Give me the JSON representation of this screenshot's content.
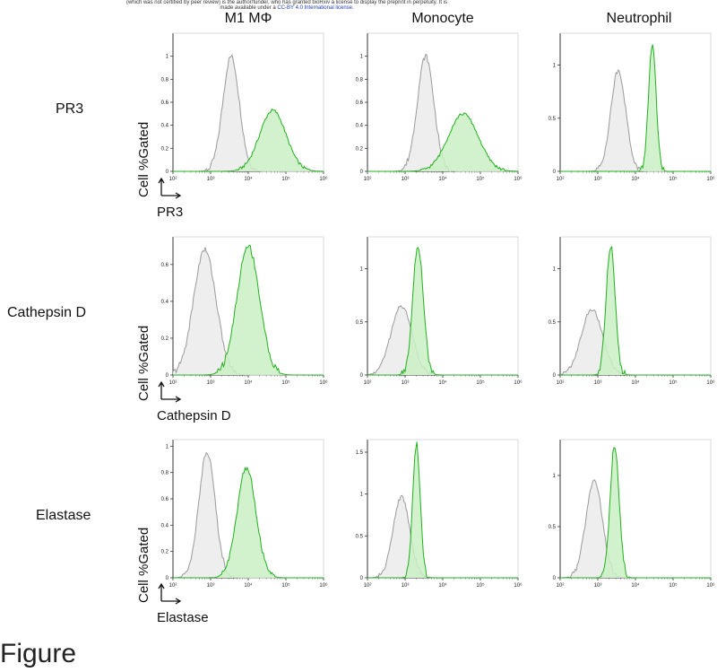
{
  "header": {
    "line1": "(which was not certified by peer review) is the author/funder, who has granted bioRxiv a license to display the preprint in perpetuity. It is",
    "line2_prefix": "made available under a",
    "line2_license": "CC-BY 4.0 International license",
    "line2_suffix": "."
  },
  "columns": [
    "M1 MΦ",
    "Monocyte",
    "Neutrophil"
  ],
  "rows": [
    "PR3",
    "Cathepsin D",
    "Elastase"
  ],
  "y_axis_label": "Cell %Gated",
  "x_axis_labels": [
    "PR3",
    "Cathepsin D",
    "Elastase"
  ],
  "caption": "Figure",
  "colors": {
    "isotype": "#9a9a9a",
    "isotype_fill": "#ececec",
    "stain": "#22b01e",
    "stain_fill": "#c9f0c3"
  },
  "chart_data": [
    {
      "type": "area",
      "panel": "PR3 / M1 MΦ",
      "xscale": "log",
      "xlim": [
        100,
        1000000
      ],
      "ylim": [
        0,
        1.2
      ],
      "yticks": [
        0,
        0.2,
        0.4,
        0.6,
        0.8,
        1
      ],
      "xticks": [
        "10²",
        "10³",
        "10⁴",
        "10⁵",
        "10⁶"
      ],
      "series": [
        {
          "role": "isotype",
          "peak_x": 3500,
          "peak_y": 1.0,
          "width_decades": 0.22
        },
        {
          "role": "stain",
          "peak_x": 45000,
          "peak_y": 0.53,
          "width_decades": 0.35
        }
      ]
    },
    {
      "type": "area",
      "panel": "PR3 / Monocyte",
      "xscale": "log",
      "xlim": [
        100,
        1000000
      ],
      "ylim": [
        0,
        1.2
      ],
      "yticks": [
        0,
        0.2,
        0.4,
        0.6,
        0.8,
        1
      ],
      "xticks": [
        "10²",
        "10³",
        "10⁴",
        "10⁵",
        "10⁶"
      ],
      "series": [
        {
          "role": "isotype",
          "peak_x": 3500,
          "peak_y": 1.0,
          "width_decades": 0.22
        },
        {
          "role": "stain",
          "peak_x": 35000,
          "peak_y": 0.5,
          "width_decades": 0.4
        }
      ]
    },
    {
      "type": "area",
      "panel": "PR3 / Neutrophil",
      "xscale": "log",
      "xlim": [
        100,
        1000000
      ],
      "ylim": [
        0,
        1.3
      ],
      "yticks": [
        0,
        0.5,
        1
      ],
      "xticks": [
        "10²",
        "10³",
        "10⁴",
        "10⁵",
        "10⁶"
      ],
      "series": [
        {
          "role": "isotype",
          "peak_x": 3500,
          "peak_y": 0.95,
          "width_decades": 0.2
        },
        {
          "role": "stain",
          "peak_x": 28000,
          "peak_y": 1.2,
          "width_decades": 0.1
        }
      ]
    },
    {
      "type": "area",
      "panel": "Cathepsin D / M1 MΦ",
      "xscale": "log",
      "xlim": [
        100,
        1000000
      ],
      "ylim": [
        0,
        0.75
      ],
      "yticks": [
        0,
        0.2,
        0.4,
        0.6
      ],
      "xticks": [
        "10²",
        "10³",
        "10⁴",
        "10⁵",
        "10⁶"
      ],
      "series": [
        {
          "role": "isotype",
          "peak_x": 700,
          "peak_y": 0.68,
          "width_decades": 0.3
        },
        {
          "role": "stain",
          "peak_x": 10000,
          "peak_y": 0.7,
          "width_decades": 0.3
        }
      ]
    },
    {
      "type": "area",
      "panel": "Cathepsin D / Monocyte",
      "xscale": "log",
      "xlim": [
        100,
        1000000
      ],
      "ylim": [
        0,
        1.3
      ],
      "yticks": [
        0,
        0.5,
        1
      ],
      "xticks": [
        "10²",
        "10³",
        "10⁴",
        "10⁵",
        "10⁶"
      ],
      "series": [
        {
          "role": "isotype",
          "peak_x": 800,
          "peak_y": 0.65,
          "width_decades": 0.28
        },
        {
          "role": "stain",
          "peak_x": 2200,
          "peak_y": 1.22,
          "width_decades": 0.14
        }
      ]
    },
    {
      "type": "area",
      "panel": "Cathepsin D / Neutrophil",
      "xscale": "log",
      "xlim": [
        100,
        1000000
      ],
      "ylim": [
        0,
        1.3
      ],
      "yticks": [
        0,
        0.5,
        1
      ],
      "xticks": [
        "10²",
        "10³",
        "10⁴",
        "10⁵",
        "10⁶"
      ],
      "series": [
        {
          "role": "isotype",
          "peak_x": 700,
          "peak_y": 0.62,
          "width_decades": 0.28
        },
        {
          "role": "stain",
          "peak_x": 2200,
          "peak_y": 1.22,
          "width_decades": 0.12
        }
      ]
    },
    {
      "type": "area",
      "panel": "Elastase / M1 MΦ",
      "xscale": "log",
      "xlim": [
        100,
        1000000
      ],
      "ylim": [
        0,
        1.05
      ],
      "yticks": [
        0,
        0.2,
        0.4,
        0.6,
        0.8,
        1
      ],
      "xticks": [
        "10²",
        "10³",
        "10⁴",
        "10⁵",
        "10⁶"
      ],
      "series": [
        {
          "role": "isotype",
          "peak_x": 800,
          "peak_y": 0.95,
          "width_decades": 0.22
        },
        {
          "role": "stain",
          "peak_x": 9000,
          "peak_y": 0.84,
          "width_decades": 0.25
        }
      ]
    },
    {
      "type": "area",
      "panel": "Elastase / Monocyte",
      "xscale": "log",
      "xlim": [
        100,
        1000000
      ],
      "ylim": [
        0,
        1.65
      ],
      "yticks": [
        0,
        0.5,
        1,
        1.5
      ],
      "xticks": [
        "10²",
        "10³",
        "10⁴",
        "10⁵",
        "10⁶"
      ],
      "series": [
        {
          "role": "isotype",
          "peak_x": 800,
          "peak_y": 0.97,
          "width_decades": 0.22
        },
        {
          "role": "stain",
          "peak_x": 2000,
          "peak_y": 1.6,
          "width_decades": 0.1
        }
      ]
    },
    {
      "type": "area",
      "panel": "Elastase / Neutrophil",
      "xscale": "log",
      "xlim": [
        100,
        1000000
      ],
      "ylim": [
        0,
        1.35
      ],
      "yticks": [
        0,
        0.5,
        1
      ],
      "xticks": [
        "10²",
        "10³",
        "10⁴",
        "10⁵",
        "10⁶"
      ],
      "series": [
        {
          "role": "isotype",
          "peak_x": 800,
          "peak_y": 0.95,
          "width_decades": 0.22
        },
        {
          "role": "stain",
          "peak_x": 2800,
          "peak_y": 1.3,
          "width_decades": 0.12
        }
      ]
    }
  ]
}
